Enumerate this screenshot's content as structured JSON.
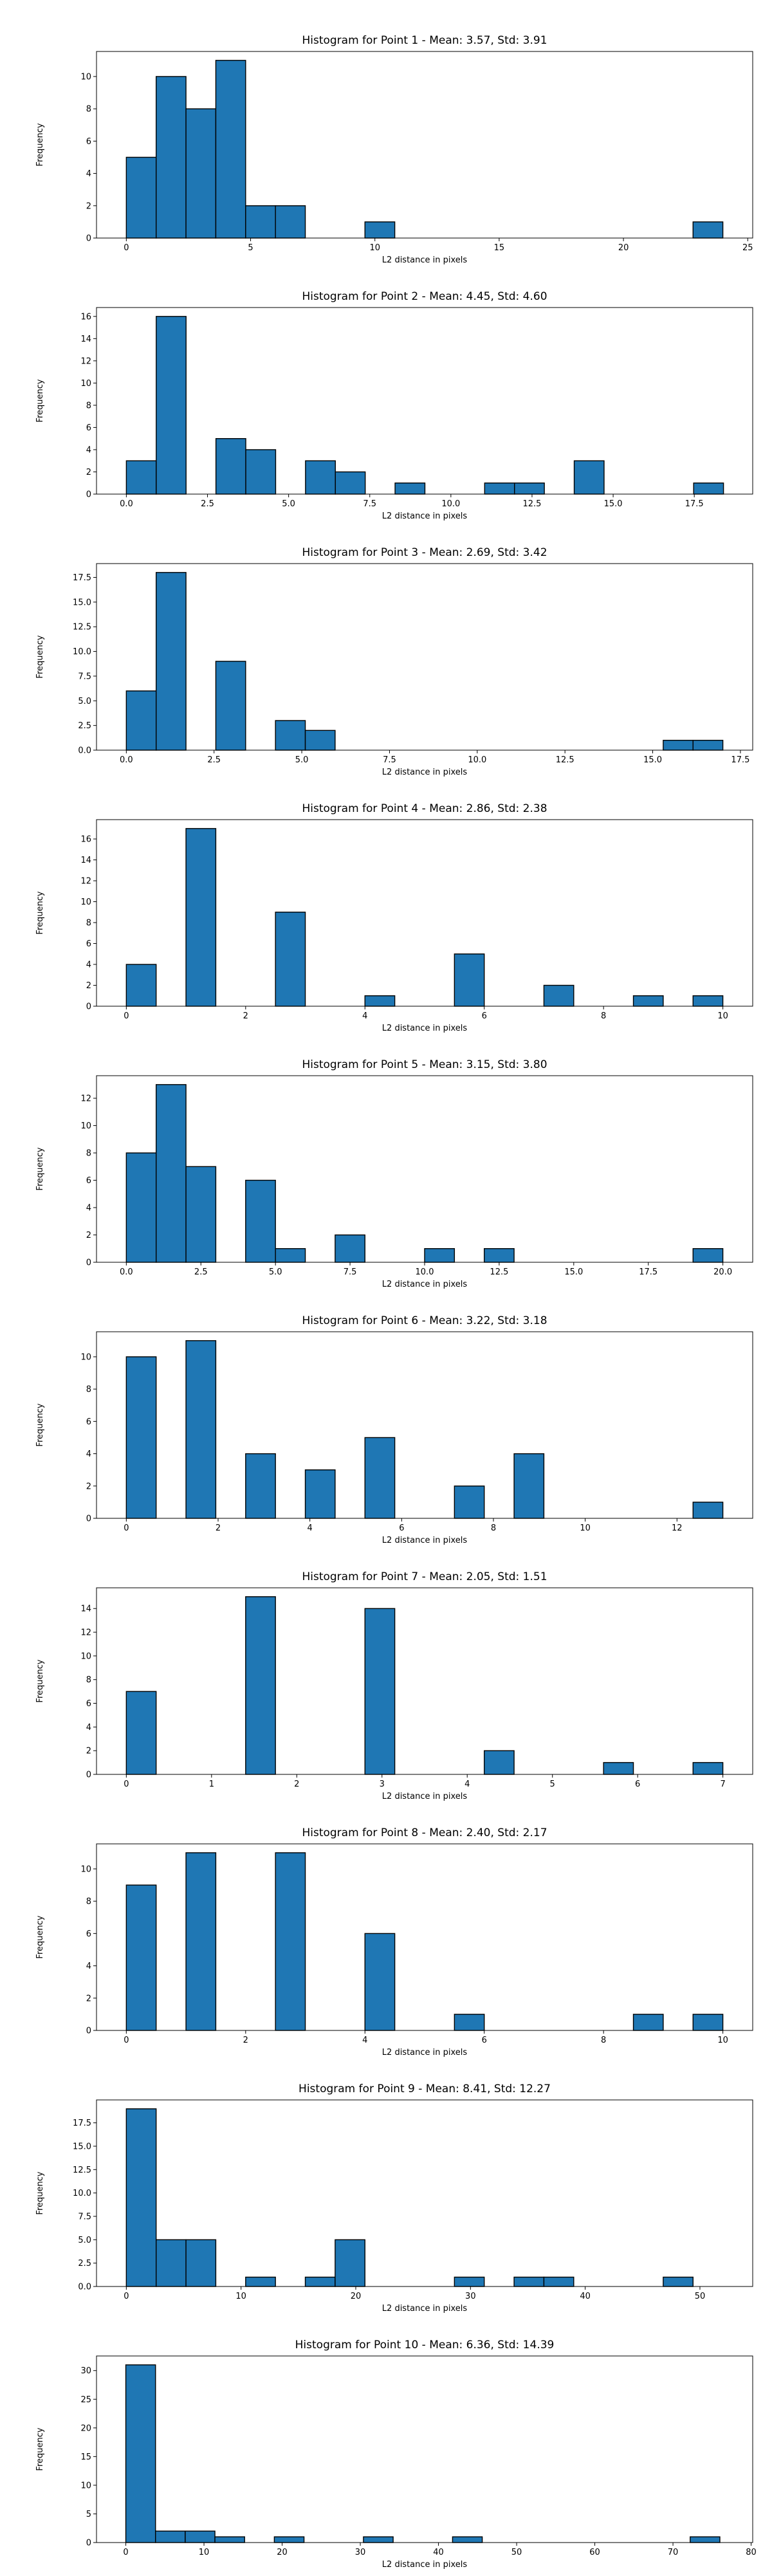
{
  "figure": {
    "bar_color": "#1f77b4",
    "edge_color": "#000000"
  },
  "chart_data": [
    {
      "type": "bar",
      "title": "Histogram for Point 1 - Mean: 3.57, Std: 3.91",
      "xlabel": "L2 distance in pixels",
      "ylabel": "Frequency",
      "xlim": [
        -1.2,
        25.2
      ],
      "ylim": [
        0,
        11.55
      ],
      "xticks": [
        0,
        5,
        10,
        15,
        20,
        25
      ],
      "xtick_labels": [
        "0",
        "5",
        "10",
        "15",
        "20",
        "25"
      ],
      "yticks": [
        0,
        2,
        4,
        6,
        8,
        10
      ],
      "ytick_labels": [
        "0",
        "2",
        "4",
        "6",
        "8",
        "10"
      ],
      "bin_edges": [
        0,
        1.2,
        2.4,
        3.6,
        4.8,
        6.0,
        7.2,
        8.4,
        9.6,
        10.8,
        12.0,
        13.2,
        14.4,
        15.6,
        16.8,
        18.0,
        19.2,
        20.4,
        21.6,
        22.8,
        24.0
      ],
      "counts": [
        5,
        10,
        8,
        11,
        2,
        2,
        0,
        0,
        1,
        0,
        0,
        0,
        0,
        0,
        0,
        0,
        0,
        0,
        0,
        1
      ]
    },
    {
      "type": "bar",
      "title": "Histogram for Point 2 - Mean: 4.45, Std: 4.60",
      "xlabel": "L2 distance in pixels",
      "ylabel": "Frequency",
      "xlim": [
        -0.92,
        19.3
      ],
      "ylim": [
        0,
        16.8
      ],
      "xticks": [
        0,
        2.5,
        5,
        7.5,
        10,
        12.5,
        15,
        17.5
      ],
      "xtick_labels": [
        "0.0",
        "2.5",
        "5.0",
        "7.5",
        "10.0",
        "12.5",
        "15.0",
        "17.5"
      ],
      "yticks": [
        0,
        2,
        4,
        6,
        8,
        10,
        12,
        14,
        16
      ],
      "ytick_labels": [
        "0",
        "2",
        "4",
        "6",
        "8",
        "10",
        "12",
        "14",
        "16"
      ],
      "bin_edges": [
        0,
        0.92,
        1.84,
        2.76,
        3.68,
        4.6,
        5.52,
        6.44,
        7.36,
        8.28,
        9.2,
        10.12,
        11.04,
        11.96,
        12.88,
        13.8,
        14.72,
        15.64,
        16.56,
        17.48,
        18.4
      ],
      "counts": [
        3,
        16,
        0,
        5,
        4,
        0,
        3,
        2,
        0,
        1,
        0,
        0,
        1,
        1,
        0,
        3,
        0,
        0,
        0,
        1
      ]
    },
    {
      "type": "bar",
      "title": "Histogram for Point 3 - Mean: 2.69, Std: 3.42",
      "xlabel": "L2 distance in pixels",
      "ylabel": "Frequency",
      "xlim": [
        -0.85,
        17.85
      ],
      "ylim": [
        0,
        18.9
      ],
      "xticks": [
        0,
        2.5,
        5,
        7.5,
        10,
        12.5,
        15,
        17.5
      ],
      "xtick_labels": [
        "0.0",
        "2.5",
        "5.0",
        "7.5",
        "10.0",
        "12.5",
        "15.0",
        "17.5"
      ],
      "yticks": [
        0,
        2.5,
        5,
        7.5,
        10,
        12.5,
        15,
        17.5
      ],
      "ytick_labels": [
        "0.0",
        "2.5",
        "5.0",
        "7.5",
        "10.0",
        "12.5",
        "15.0",
        "17.5"
      ],
      "bin_edges": [
        0,
        0.85,
        1.7,
        2.55,
        3.4,
        4.25,
        5.1,
        5.95,
        6.8,
        7.65,
        8.5,
        9.35,
        10.2,
        11.05,
        11.9,
        12.75,
        13.6,
        14.45,
        15.3,
        16.15,
        17.0
      ],
      "counts": [
        6,
        18,
        0,
        9,
        0,
        3,
        2,
        0,
        0,
        0,
        0,
        0,
        0,
        0,
        0,
        0,
        0,
        0,
        1,
        1
      ]
    },
    {
      "type": "bar",
      "title": "Histogram for Point 4 - Mean: 2.86, Std: 2.38",
      "xlabel": "L2 distance in pixels",
      "ylabel": "Frequency",
      "xlim": [
        -0.5,
        10.5
      ],
      "ylim": [
        0,
        17.85
      ],
      "xticks": [
        0,
        2,
        4,
        6,
        8,
        10
      ],
      "xtick_labels": [
        "0",
        "2",
        "4",
        "6",
        "8",
        "10"
      ],
      "yticks": [
        0,
        2,
        4,
        6,
        8,
        10,
        12,
        14,
        16
      ],
      "ytick_labels": [
        "0",
        "2",
        "4",
        "6",
        "8",
        "10",
        "12",
        "14",
        "16"
      ],
      "bin_edges": [
        0,
        0.5,
        1,
        1.5,
        2,
        2.5,
        3,
        3.5,
        4,
        4.5,
        5,
        5.5,
        6,
        6.5,
        7,
        7.5,
        8,
        8.5,
        9,
        9.5,
        10
      ],
      "counts": [
        4,
        0,
        17,
        0,
        0,
        9,
        0,
        0,
        1,
        0,
        0,
        5,
        0,
        0,
        2,
        0,
        0,
        1,
        0,
        1
      ]
    },
    {
      "type": "bar",
      "title": "Histogram for Point 5 - Mean: 3.15, Std: 3.80",
      "xlabel": "L2 distance in pixels",
      "ylabel": "Frequency",
      "xlim": [
        -1.0,
        21.0
      ],
      "ylim": [
        0,
        13.65
      ],
      "xticks": [
        0,
        2.5,
        5,
        7.5,
        10,
        12.5,
        15,
        17.5,
        20
      ],
      "xtick_labels": [
        "0.0",
        "2.5",
        "5.0",
        "7.5",
        "10.0",
        "12.5",
        "15.0",
        "17.5",
        "20.0"
      ],
      "yticks": [
        0,
        2,
        4,
        6,
        8,
        10,
        12
      ],
      "ytick_labels": [
        "0",
        "2",
        "4",
        "6",
        "8",
        "10",
        "12"
      ],
      "bin_edges": [
        0,
        1,
        2,
        3,
        4,
        5,
        6,
        7,
        8,
        9,
        10,
        11,
        12,
        13,
        14,
        15,
        16,
        17,
        18,
        19,
        20
      ],
      "counts": [
        8,
        13,
        7,
        0,
        6,
        1,
        0,
        2,
        0,
        0,
        1,
        0,
        1,
        0,
        0,
        0,
        0,
        0,
        0,
        1
      ]
    },
    {
      "type": "bar",
      "title": "Histogram for Point 6 - Mean: 3.22, Std: 3.18",
      "xlabel": "L2 distance in pixels",
      "ylabel": "Frequency",
      "xlim": [
        -0.65,
        13.65
      ],
      "ylim": [
        0,
        11.55
      ],
      "xticks": [
        0,
        2,
        4,
        6,
        8,
        10,
        12
      ],
      "xtick_labels": [
        "0",
        "2",
        "4",
        "6",
        "8",
        "10",
        "12"
      ],
      "yticks": [
        0,
        2,
        4,
        6,
        8,
        10
      ],
      "ytick_labels": [
        "0",
        "2",
        "4",
        "6",
        "8",
        "10"
      ],
      "bin_edges": [
        0,
        0.65,
        1.3,
        1.95,
        2.6,
        3.25,
        3.9,
        4.55,
        5.2,
        5.85,
        6.5,
        7.15,
        7.8,
        8.45,
        9.1,
        9.75,
        10.4,
        11.05,
        11.7,
        12.35,
        13.0
      ],
      "counts": [
        10,
        0,
        11,
        0,
        4,
        0,
        3,
        0,
        5,
        0,
        0,
        2,
        0,
        4,
        0,
        0,
        0,
        0,
        0,
        1
      ]
    },
    {
      "type": "bar",
      "title": "Histogram for Point 7 - Mean: 2.05, Std: 1.51",
      "xlabel": "L2 distance in pixels",
      "ylabel": "Frequency",
      "xlim": [
        -0.35,
        7.35
      ],
      "ylim": [
        0,
        15.75
      ],
      "xticks": [
        0,
        1,
        2,
        3,
        4,
        5,
        6,
        7
      ],
      "xtick_labels": [
        "0",
        "1",
        "2",
        "3",
        "4",
        "5",
        "6",
        "7"
      ],
      "yticks": [
        0,
        2,
        4,
        6,
        8,
        10,
        12,
        14
      ],
      "ytick_labels": [
        "0",
        "2",
        "4",
        "6",
        "8",
        "10",
        "12",
        "14"
      ],
      "bin_edges": [
        0,
        0.35,
        0.7,
        1.05,
        1.4,
        1.75,
        2.1,
        2.45,
        2.8,
        3.15,
        3.5,
        3.85,
        4.2,
        4.55,
        4.9,
        5.25,
        5.6,
        5.95,
        6.3,
        6.65,
        7.0
      ],
      "counts": [
        7,
        0,
        0,
        0,
        15,
        0,
        0,
        0,
        14,
        0,
        0,
        0,
        2,
        0,
        0,
        0,
        1,
        0,
        0,
        1
      ]
    },
    {
      "type": "bar",
      "title": "Histogram for Point 8 - Mean: 2.40, Std: 2.17",
      "xlabel": "L2 distance in pixels",
      "ylabel": "Frequency",
      "xlim": [
        -0.5,
        10.5
      ],
      "ylim": [
        0,
        11.55
      ],
      "xticks": [
        0,
        2,
        4,
        6,
        8,
        10
      ],
      "xtick_labels": [
        "0",
        "2",
        "4",
        "6",
        "8",
        "10"
      ],
      "yticks": [
        0,
        2,
        4,
        6,
        8,
        10
      ],
      "ytick_labels": [
        "0",
        "2",
        "4",
        "6",
        "8",
        "10"
      ],
      "bin_edges": [
        0,
        0.5,
        1,
        1.5,
        2,
        2.5,
        3,
        3.5,
        4,
        4.5,
        5,
        5.5,
        6,
        6.5,
        7,
        7.5,
        8,
        8.5,
        9,
        9.5,
        10
      ],
      "counts": [
        9,
        0,
        11,
        0,
        0,
        11,
        0,
        0,
        6,
        0,
        0,
        1,
        0,
        0,
        0,
        0,
        0,
        1,
        0,
        1
      ]
    },
    {
      "type": "bar",
      "title": "Histogram for Point 9 - Mean: 8.41, Std: 12.27",
      "xlabel": "L2 distance in pixels",
      "ylabel": "Frequency",
      "xlim": [
        -2.6,
        54.6
      ],
      "ylim": [
        0,
        19.95
      ],
      "xticks": [
        0,
        10,
        20,
        30,
        40,
        50
      ],
      "xtick_labels": [
        "0",
        "10",
        "20",
        "30",
        "40",
        "50"
      ],
      "yticks": [
        0,
        2.5,
        5,
        7.5,
        10,
        12.5,
        15,
        17.5
      ],
      "ytick_labels": [
        "0.0",
        "2.5",
        "5.0",
        "7.5",
        "10.0",
        "12.5",
        "15.0",
        "17.5"
      ],
      "bin_edges": [
        0,
        2.6,
        5.2,
        7.8,
        10.4,
        13.0,
        15.6,
        18.2,
        20.8,
        23.4,
        26.0,
        28.6,
        31.2,
        33.8,
        36.4,
        39.0,
        41.6,
        44.2,
        46.8,
        49.4,
        52.0
      ],
      "counts": [
        19,
        5,
        5,
        0,
        1,
        0,
        1,
        5,
        0,
        0,
        0,
        1,
        0,
        1,
        1,
        0,
        0,
        0,
        1,
        0
      ]
    },
    {
      "type": "bar",
      "title": "Histogram for Point 10 - Mean: 6.36, Std: 14.39",
      "xlabel": "L2 distance in pixels",
      "ylabel": "Frequency",
      "xlim": [
        -3.75,
        80.2
      ],
      "ylim": [
        0,
        32.55
      ],
      "xticks": [
        0,
        10,
        20,
        30,
        40,
        50,
        60,
        70,
        80
      ],
      "xtick_labels": [
        "0",
        "10",
        "20",
        "30",
        "40",
        "50",
        "60",
        "70",
        "80"
      ],
      "yticks": [
        0,
        5,
        10,
        15,
        20,
        25,
        30
      ],
      "ytick_labels": [
        "0",
        "5",
        "10",
        "15",
        "20",
        "25",
        "30"
      ],
      "bin_edges": [
        0,
        3.8,
        7.6,
        11.4,
        15.2,
        19.0,
        22.8,
        26.6,
        30.4,
        34.2,
        38.0,
        41.8,
        45.6,
        49.4,
        53.2,
        57.0,
        60.8,
        64.6,
        68.4,
        72.2,
        76.0
      ],
      "counts": [
        31,
        2,
        2,
        1,
        0,
        1,
        0,
        0,
        1,
        0,
        0,
        1,
        0,
        0,
        0,
        0,
        0,
        0,
        0,
        1
      ]
    }
  ]
}
